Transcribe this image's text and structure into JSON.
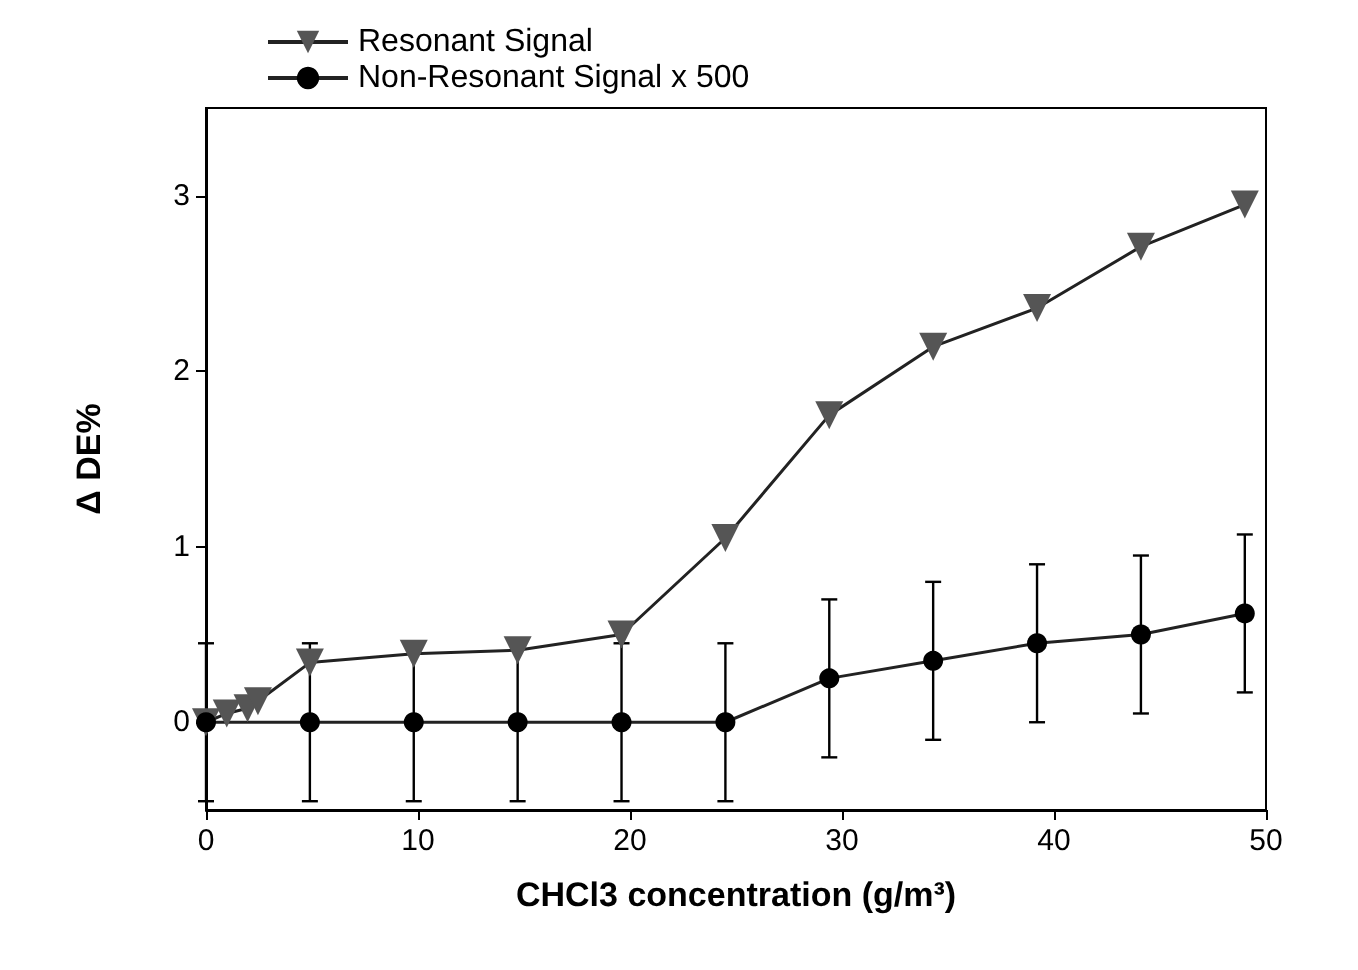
{
  "chart_data": {
    "type": "line",
    "xlabel": "CHCl3 concentration (g/m³)",
    "ylabel": "Δ DE%",
    "xlim": [
      0,
      50
    ],
    "xticks": [
      0,
      10,
      20,
      30,
      40,
      50
    ],
    "ylim": [
      -0.5,
      3.5
    ],
    "yticks": [
      0,
      1,
      2,
      3
    ],
    "grid": false,
    "legend": "top left",
    "line_style": "solid",
    "series": [
      {
        "name": "Resonant Signal",
        "color": "#555555",
        "marker": "triangle",
        "x": [
          0,
          0.98,
          1.96,
          2.45,
          4.9,
          9.8,
          14.7,
          19.6,
          24.5,
          29.4,
          34.3,
          39.2,
          44.1,
          49
        ],
        "values": [
          0,
          0.05,
          0.08,
          0.12,
          0.34,
          0.39,
          0.41,
          0.5,
          1.05,
          1.75,
          2.14,
          2.36,
          2.71,
          2.95
        ]
      },
      {
        "name": "Non-Resonant Signal x 500",
        "color": "#000000",
        "marker": "circle",
        "x": [
          0,
          4.9,
          9.8,
          14.7,
          19.6,
          24.5,
          29.4,
          34.3,
          39.2,
          44.1,
          49
        ],
        "values": [
          0,
          0,
          0,
          0,
          0,
          0,
          0.25,
          0.35,
          0.45,
          0.5,
          0.62
        ],
        "errors": [
          0.45,
          0.45,
          0.45,
          0.45,
          0.45,
          0.45,
          0.45,
          0.45,
          0.45,
          0.45,
          0.45
        ]
      }
    ]
  }
}
